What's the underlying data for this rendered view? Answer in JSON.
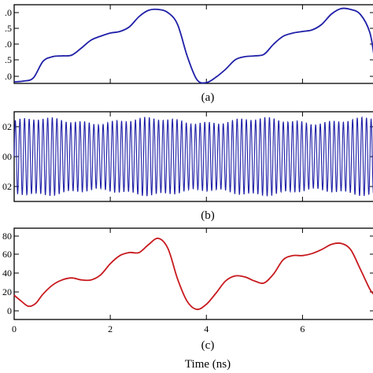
{
  "chart_data": [
    {
      "type": "line",
      "panel_label": "(a)",
      "y_tick_labels": [
        ".0",
        ".5",
        ".0",
        ".5",
        ".0"
      ],
      "ylim": [
        0,
        1
      ],
      "xlim": [
        0,
        7.5
      ],
      "color": "#1f1fa8",
      "x": [
        0.0,
        0.2,
        0.4,
        0.6,
        0.8,
        1.0,
        1.2,
        1.4,
        1.6,
        1.8,
        2.0,
        2.2,
        2.4,
        2.6,
        2.8,
        3.0,
        3.2,
        3.4,
        3.6,
        3.8,
        4.0,
        4.2,
        4.4,
        4.6,
        4.8,
        5.0,
        5.2,
        5.4,
        5.6,
        5.8,
        6.0,
        6.2,
        6.4,
        6.6,
        6.8,
        7.0,
        7.2,
        7.4,
        7.5
      ],
      "y": [
        0.02,
        0.03,
        0.07,
        0.28,
        0.34,
        0.35,
        0.36,
        0.45,
        0.55,
        0.6,
        0.64,
        0.66,
        0.72,
        0.85,
        0.93,
        0.94,
        0.9,
        0.75,
        0.35,
        0.05,
        0.01,
        0.08,
        0.18,
        0.3,
        0.34,
        0.35,
        0.37,
        0.5,
        0.6,
        0.64,
        0.66,
        0.68,
        0.75,
        0.88,
        0.95,
        0.94,
        0.88,
        0.65,
        0.3
      ]
    },
    {
      "type": "line",
      "panel_label": "(b)",
      "y_tick_labels": [
        "02",
        "00",
        "02"
      ],
      "ylim": [
        -0.03,
        0.03
      ],
      "xlim": [
        0,
        7.5
      ],
      "color": "#1f1fa8",
      "oscillation_cycles": 78,
      "amplitude": 0.024
    },
    {
      "type": "line",
      "panel_label": "(c)",
      "y_tick_labels": [
        "80",
        "60",
        "40",
        "20",
        "0"
      ],
      "x_tick_labels": [
        "0",
        "2",
        "4",
        "6"
      ],
      "xlabel": "Time (ns)",
      "ylim": [
        -10,
        80
      ],
      "xlim": [
        0,
        7.5
      ],
      "color": "#c8191e",
      "x": [
        0.0,
        0.15,
        0.3,
        0.45,
        0.6,
        0.8,
        1.0,
        1.2,
        1.4,
        1.6,
        1.8,
        2.0,
        2.2,
        2.4,
        2.6,
        2.8,
        3.0,
        3.2,
        3.4,
        3.6,
        3.8,
        4.0,
        4.2,
        4.4,
        4.6,
        4.8,
        5.0,
        5.2,
        5.4,
        5.6,
        5.8,
        6.0,
        6.2,
        6.4,
        6.6,
        6.8,
        7.0,
        7.2,
        7.4,
        7.5
      ],
      "y": [
        14,
        8,
        3,
        6,
        15,
        24,
        29,
        31,
        29,
        29,
        34,
        45,
        53,
        56,
        56,
        64,
        70,
        60,
        30,
        8,
        0,
        5,
        16,
        28,
        33,
        32,
        28,
        26,
        35,
        49,
        53,
        53,
        55,
        59,
        64,
        65,
        59,
        40,
        20,
        14
      ]
    }
  ]
}
